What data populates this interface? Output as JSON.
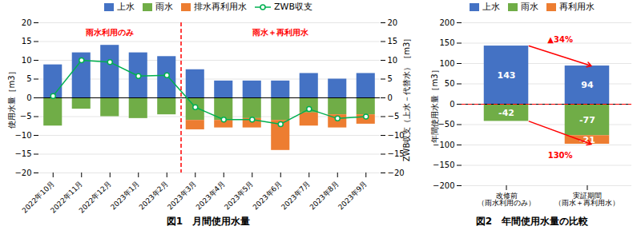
{
  "chart_data": [
    {
      "type": "bar",
      "stacked": true,
      "title": "図1　月間使用水量",
      "categories": [
        "2022年10月",
        "2022年11月",
        "2022年12月",
        "2023年1月",
        "2023年2月",
        "2023年3月",
        "2023年4月",
        "2023年5月",
        "2023年6月",
        "2023年7月",
        "2023年8月",
        "2023年9月"
      ],
      "series": [
        {
          "name": "上水",
          "color": "#4472C4",
          "values": [
            8.8,
            12.0,
            14.0,
            12.0,
            11.0,
            7.5,
            4.5,
            4.5,
            4.5,
            6.5,
            5.0,
            6.5
          ]
        },
        {
          "name": "雨水",
          "color": "#70AD47",
          "values": [
            -7.5,
            -3.0,
            -5.0,
            -5.5,
            -4.5,
            -6.0,
            -6.0,
            -5.5,
            -6.0,
            -4.0,
            -4.5,
            -4.5
          ]
        },
        {
          "name": "排水再利用水",
          "color": "#ED7D31",
          "values": [
            0,
            0,
            0,
            0,
            0,
            -2.5,
            -2.0,
            -2.5,
            -8.0,
            -3.5,
            -3.5,
            -2.5
          ]
        },
        {
          "name": "ZWB収支",
          "type": "line",
          "marker": "circle",
          "axis": "y2",
          "color": "#00B050",
          "values": [
            0.5,
            10.0,
            9.5,
            5.8,
            6.0,
            -2.5,
            -5.8,
            -5.8,
            -7.0,
            -3.0,
            -5.5,
            -5.0
          ]
        }
      ],
      "ylabel": "使用水量［m3］",
      "y2label": "ZWB収支（上水－代替水）［m3］",
      "ylim": [
        -20,
        20
      ],
      "yticks": [
        -20,
        -15,
        -10,
        -5,
        0,
        5,
        10,
        15,
        20
      ],
      "y2lim": [
        -20,
        20
      ],
      "y2ticks": [
        -20,
        -15,
        -10,
        -5,
        0,
        5,
        10,
        15,
        20
      ],
      "grid": true,
      "legend": "top",
      "annotations": [
        {
          "text": "雨水利用のみ",
          "from": "2022年10月",
          "to": "2023年2月"
        },
        {
          "text": "雨水＋再利用水",
          "from": "2023年3月",
          "to": "2023年9月"
        }
      ]
    },
    {
      "type": "bar",
      "stacked": true,
      "title": "図2　年間使用水量の比較",
      "categories": [
        "改修前\n（雨水利用のみ）",
        "実証期間\n（雨水＋再利用水）"
      ],
      "series": [
        {
          "name": "上水",
          "color": "#4472C4",
          "values": [
            143,
            94
          ]
        },
        {
          "name": "雨水",
          "color": "#70AD47",
          "values": [
            -42,
            -77
          ]
        },
        {
          "name": "再利用水",
          "color": "#ED7D31",
          "values": [
            0,
            -21
          ]
        }
      ],
      "ylabel": "年間使用水量［m3］",
      "ylim": [
        -200,
        200
      ],
      "yticks": [
        -200,
        -150,
        -100,
        -50,
        0,
        50,
        100,
        150,
        200
      ],
      "grid": true,
      "legend": "top",
      "data_labels": true,
      "annotations": [
        {
          "text": "▲34%",
          "from": "改修前\n（雨水利用のみ）",
          "to": "実証期間\n（雨水＋再利用水）",
          "side": "top"
        },
        {
          "text": "130%",
          "from": "改修前\n（雨水利用のみ）",
          "to": "実証期間\n（雨水＋再利用水）",
          "side": "bottom"
        }
      ]
    }
  ]
}
